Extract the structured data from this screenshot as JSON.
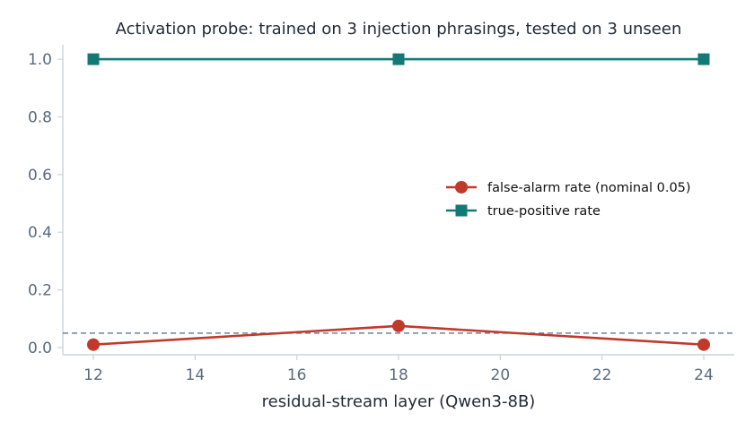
{
  "chart_data": {
    "type": "line",
    "title": "Activation probe: trained on 3 injection phrasings, tested on 3 unseen",
    "xlabel": "residual-stream layer (Qwen3-8B)",
    "ylabel": "",
    "x": [
      12,
      18,
      24
    ],
    "xlim": [
      11.4,
      24.6
    ],
    "ylim": [
      -0.025,
      1.05
    ],
    "xticks": [
      "12",
      "14",
      "16",
      "18",
      "20",
      "22",
      "24"
    ],
    "yticks": [
      "0.0",
      "0.2",
      "0.4",
      "0.6",
      "0.8",
      "1.0"
    ],
    "series": [
      {
        "name": "false-alarm rate (nominal 0.05)",
        "values": [
          0.01,
          0.075,
          0.01
        ],
        "color": "#c0392b",
        "marker": "circle"
      },
      {
        "name": "true-positive rate",
        "values": [
          1.0,
          1.0,
          1.0
        ],
        "color": "#117a76",
        "marker": "square"
      }
    ],
    "reference_line": {
      "y": 0.05,
      "style": "dashed",
      "color": "#718096"
    },
    "grid": false,
    "legend_position": "center-right"
  }
}
